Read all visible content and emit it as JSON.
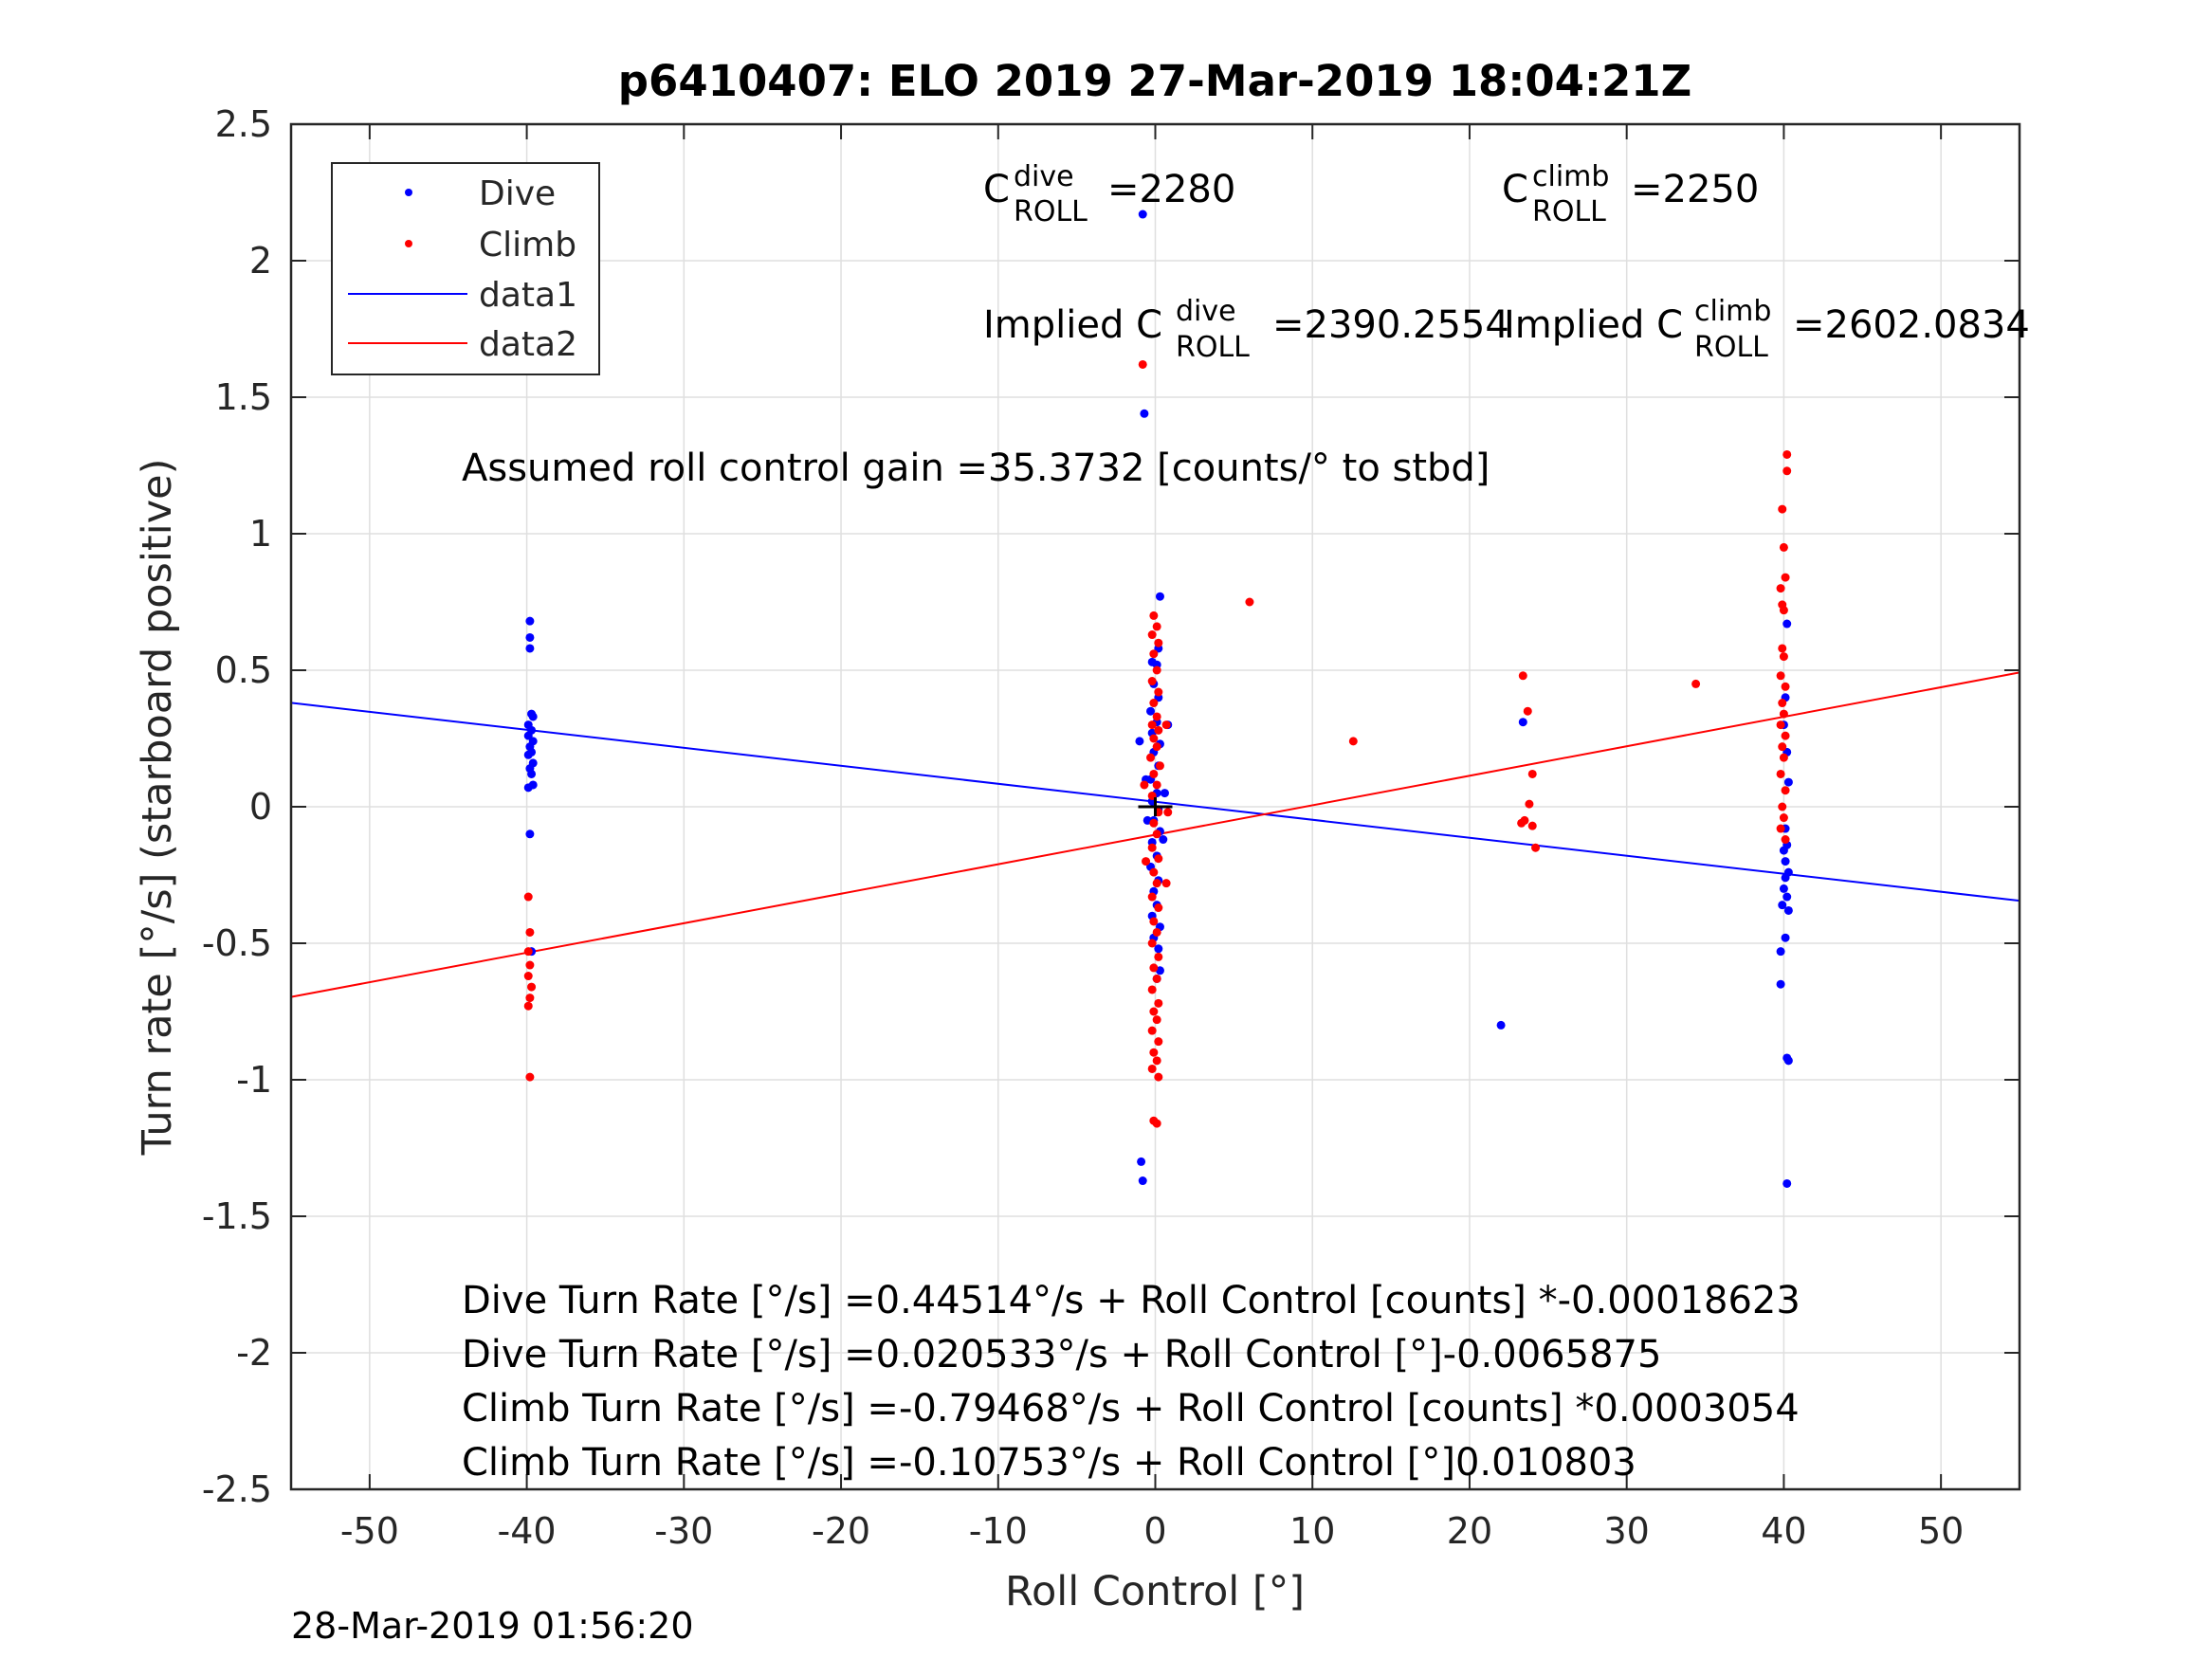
{
  "chart_data": {
    "type": "scatter",
    "title": "p6410407: ELO 2019 27-Mar-2019 18:04:21Z",
    "xlabel": "Roll Control [°]",
    "ylabel": "Turn rate [°/s] (starboard positive)",
    "xlim": [
      -55,
      55
    ],
    "ylim": [
      -2.5,
      2.5
    ],
    "xticks": [
      "-50",
      "-40",
      "-30",
      "-20",
      "-10",
      "0",
      "10",
      "20",
      "30",
      "40",
      "50"
    ],
    "yticks": [
      "2.5",
      "2",
      "1.5",
      "1",
      "0.5",
      "0",
      "-0.5",
      "-1",
      "-1.5",
      "-2",
      "-2.5"
    ],
    "grid": true,
    "legend_position": "top-left",
    "legend": [
      "Dive",
      "Climb",
      "data1",
      "data2"
    ],
    "colors": {
      "dive": "#0000ff",
      "climb": "#ff0000",
      "axis": "#262626",
      "grid": "#dfdfdf"
    },
    "series": [
      {
        "name": "Dive",
        "kind": "points",
        "color": "#0000ff",
        "points": [
          [
            -39.8,
            0.68
          ],
          [
            -39.8,
            0.62
          ],
          [
            -39.8,
            0.58
          ],
          [
            -39.7,
            0.34
          ],
          [
            -39.6,
            0.33
          ],
          [
            -39.9,
            0.3
          ],
          [
            -39.7,
            0.28
          ],
          [
            -39.9,
            0.26
          ],
          [
            -39.6,
            0.24
          ],
          [
            -39.8,
            0.22
          ],
          [
            -39.7,
            0.2
          ],
          [
            -39.9,
            0.19
          ],
          [
            -39.6,
            0.16
          ],
          [
            -39.8,
            0.14
          ],
          [
            -39.7,
            0.12
          ],
          [
            -39.6,
            0.08
          ],
          [
            -39.9,
            0.07
          ],
          [
            -39.8,
            -0.1
          ],
          [
            -39.7,
            -0.53
          ],
          [
            -0.8,
            2.17
          ],
          [
            -0.7,
            1.44
          ],
          [
            -0.9,
            -1.3
          ],
          [
            -0.8,
            -1.37
          ],
          [
            0.3,
            0.77
          ],
          [
            0.2,
            0.58
          ],
          [
            -0.2,
            0.53
          ],
          [
            0.1,
            0.52
          ],
          [
            -0.1,
            0.45
          ],
          [
            0.2,
            0.4
          ],
          [
            -0.3,
            0.35
          ],
          [
            0.1,
            0.31
          ],
          [
            -0.2,
            0.27
          ],
          [
            0.3,
            0.23
          ],
          [
            -0.1,
            0.2
          ],
          [
            0.2,
            0.15
          ],
          [
            -0.3,
            0.1
          ],
          [
            0.1,
            0.05
          ],
          [
            -0.2,
            0.02
          ],
          [
            0.2,
            -0.01
          ],
          [
            -0.1,
            -0.05
          ],
          [
            0.3,
            -0.09
          ],
          [
            -0.2,
            -0.13
          ],
          [
            0.1,
            -0.18
          ],
          [
            -0.3,
            -0.22
          ],
          [
            0.2,
            -0.27
          ],
          [
            -0.1,
            -0.31
          ],
          [
            0.1,
            -0.36
          ],
          [
            -0.2,
            -0.4
          ],
          [
            0.3,
            -0.44
          ],
          [
            -0.1,
            -0.48
          ],
          [
            0.2,
            -0.52
          ],
          [
            0.3,
            -0.6
          ],
          [
            0.1,
            -0.63
          ],
          [
            -1.0,
            0.24
          ],
          [
            0.8,
            0.3
          ],
          [
            -0.6,
            0.1
          ],
          [
            0.6,
            0.05
          ],
          [
            -0.5,
            -0.05
          ],
          [
            0.5,
            -0.12
          ],
          [
            23.4,
            0.31
          ],
          [
            22.0,
            -0.8
          ],
          [
            40.2,
            0.67
          ],
          [
            40.1,
            0.4
          ],
          [
            40.0,
            0.3
          ],
          [
            40.2,
            0.2
          ],
          [
            40.3,
            0.09
          ],
          [
            40.1,
            -0.08
          ],
          [
            40.2,
            -0.14
          ],
          [
            40.0,
            -0.16
          ],
          [
            40.1,
            -0.2
          ],
          [
            40.3,
            -0.24
          ],
          [
            40.1,
            -0.26
          ],
          [
            40.0,
            -0.3
          ],
          [
            40.2,
            -0.33
          ],
          [
            39.9,
            -0.36
          ],
          [
            40.3,
            -0.38
          ],
          [
            40.1,
            -0.48
          ],
          [
            39.8,
            -0.53
          ],
          [
            39.8,
            -0.65
          ],
          [
            40.2,
            -0.92
          ],
          [
            40.3,
            -0.93
          ],
          [
            40.2,
            -1.38
          ]
        ]
      },
      {
        "name": "Climb",
        "kind": "points",
        "color": "#ff0000",
        "points": [
          [
            -39.9,
            -0.33
          ],
          [
            -39.8,
            -0.46
          ],
          [
            -39.9,
            -0.53
          ],
          [
            -39.8,
            -0.58
          ],
          [
            -39.9,
            -0.62
          ],
          [
            -39.7,
            -0.66
          ],
          [
            -39.8,
            -0.7
          ],
          [
            -39.9,
            -0.73
          ],
          [
            -39.8,
            -0.99
          ],
          [
            -0.8,
            1.62
          ],
          [
            -0.1,
            0.7
          ],
          [
            0.1,
            0.66
          ],
          [
            -0.2,
            0.63
          ],
          [
            0.2,
            0.6
          ],
          [
            -0.1,
            0.56
          ],
          [
            0.1,
            0.5
          ],
          [
            -0.2,
            0.46
          ],
          [
            0.2,
            0.42
          ],
          [
            -0.1,
            0.38
          ],
          [
            0.1,
            0.33
          ],
          [
            -0.2,
            0.3
          ],
          [
            0.2,
            0.28
          ],
          [
            -0.1,
            0.25
          ],
          [
            0.1,
            0.22
          ],
          [
            -0.3,
            0.18
          ],
          [
            0.3,
            0.15
          ],
          [
            -0.1,
            0.12
          ],
          [
            0.1,
            0.08
          ],
          [
            -0.2,
            0.04
          ],
          [
            0.2,
            -0.02
          ],
          [
            -0.1,
            -0.06
          ],
          [
            0.1,
            -0.1
          ],
          [
            -0.2,
            -0.15
          ],
          [
            0.2,
            -0.19
          ],
          [
            -0.1,
            -0.24
          ],
          [
            0.1,
            -0.28
          ],
          [
            -0.2,
            -0.33
          ],
          [
            0.2,
            -0.37
          ],
          [
            -0.1,
            -0.42
          ],
          [
            0.1,
            -0.46
          ],
          [
            -0.2,
            -0.5
          ],
          [
            0.2,
            -0.55
          ],
          [
            -0.1,
            -0.59
          ],
          [
            0.1,
            -0.63
          ],
          [
            -0.2,
            -0.67
          ],
          [
            0.2,
            -0.72
          ],
          [
            -0.1,
            -0.75
          ],
          [
            0.1,
            -0.78
          ],
          [
            -0.2,
            -0.82
          ],
          [
            0.2,
            -0.86
          ],
          [
            -0.1,
            -0.9
          ],
          [
            0.1,
            -0.93
          ],
          [
            -0.2,
            -0.96
          ],
          [
            0.2,
            -0.99
          ],
          [
            -0.1,
            -1.15
          ],
          [
            0.1,
            -1.16
          ],
          [
            0.7,
            0.3
          ],
          [
            -0.7,
            0.08
          ],
          [
            0.8,
            -0.02
          ],
          [
            -0.6,
            -0.2
          ],
          [
            0.7,
            -0.28
          ],
          [
            6.0,
            0.75
          ],
          [
            12.6,
            0.24
          ],
          [
            23.4,
            0.48
          ],
          [
            23.7,
            0.35
          ],
          [
            24.0,
            0.12
          ],
          [
            23.8,
            0.01
          ],
          [
            23.5,
            -0.05
          ],
          [
            23.3,
            -0.06
          ],
          [
            24.0,
            -0.07
          ],
          [
            24.2,
            -0.15
          ],
          [
            34.4,
            0.45
          ],
          [
            40.2,
            1.29
          ],
          [
            40.2,
            1.23
          ],
          [
            39.9,
            1.09
          ],
          [
            40.0,
            0.95
          ],
          [
            40.1,
            0.84
          ],
          [
            39.8,
            0.8
          ],
          [
            39.9,
            0.74
          ],
          [
            40.0,
            0.72
          ],
          [
            39.9,
            0.58
          ],
          [
            40.0,
            0.55
          ],
          [
            39.8,
            0.48
          ],
          [
            40.1,
            0.44
          ],
          [
            39.9,
            0.38
          ],
          [
            40.0,
            0.34
          ],
          [
            39.8,
            0.3
          ],
          [
            40.1,
            0.26
          ],
          [
            39.9,
            0.22
          ],
          [
            40.0,
            0.18
          ],
          [
            39.8,
            0.12
          ],
          [
            40.1,
            0.06
          ],
          [
            39.9,
            0.0
          ],
          [
            40.0,
            -0.04
          ],
          [
            39.8,
            -0.08
          ],
          [
            40.1,
            -0.12
          ]
        ]
      },
      {
        "name": "data1",
        "kind": "line",
        "color": "#0000ff",
        "points": [
          [
            -55,
            0.3807
          ],
          [
            55,
            -0.3443
          ]
        ]
      },
      {
        "name": "data2",
        "kind": "line",
        "color": "#ff0000",
        "points": [
          [
            -55,
            -0.6967
          ],
          [
            55,
            0.4916
          ]
        ]
      }
    ],
    "center_mark": [
      0,
      0
    ]
  },
  "annotations": {
    "c_dive_base": "C",
    "c_dive_sup": "dive",
    "c_dive_sub": "ROLL",
    "c_dive_val": "=2280",
    "c_climb_base": "C",
    "c_climb_sup": "climb",
    "c_climb_sub": "ROLL",
    "c_climb_val": "=2250",
    "implied_dive_prefix": "Implied C",
    "implied_dive_sup": "dive",
    "implied_dive_sub": "ROLL",
    "implied_dive_val": "=2390.2554",
    "implied_climb_prefix": "Implied C",
    "implied_climb_sup": "climb",
    "implied_climb_sub": "ROLL",
    "implied_climb_val": "=2602.0834",
    "gain": "Assumed roll control gain =35.3732 [counts/° to stbd]",
    "eq1": "Dive Turn Rate [°/s] =0.44514°/s + Roll Control [counts] *-0.00018623",
    "eq2": "Dive Turn Rate [°/s] =0.020533°/s + Roll Control [°]-0.0065875",
    "eq3": "Climb Turn Rate [°/s] =-0.79468°/s + Roll Control [counts] *0.0003054",
    "eq4": "Climb Turn Rate [°/s] =-0.10753°/s + Roll Control [°]0.010803"
  },
  "footer_timestamp": "28-Mar-2019 01:56:20"
}
